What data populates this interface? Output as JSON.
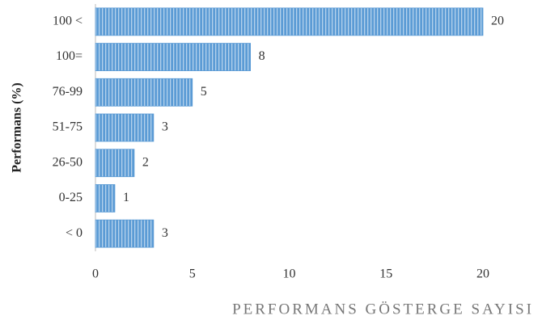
{
  "chart_data": {
    "type": "bar",
    "orientation": "horizontal",
    "categories": [
      "100 <",
      "100=",
      "76-99",
      "51-75",
      "26-50",
      "0-25",
      "< 0"
    ],
    "values": [
      20,
      8,
      5,
      3,
      2,
      1,
      3
    ],
    "color": "#5b9bd5",
    "xlim": [
      0,
      20
    ],
    "xticks": [
      0,
      5,
      10,
      15,
      20
    ],
    "xlabel": "PERFORMANS GÖSTERGE SAYISI",
    "ylabel": "Performans (%)",
    "grid": false
  }
}
